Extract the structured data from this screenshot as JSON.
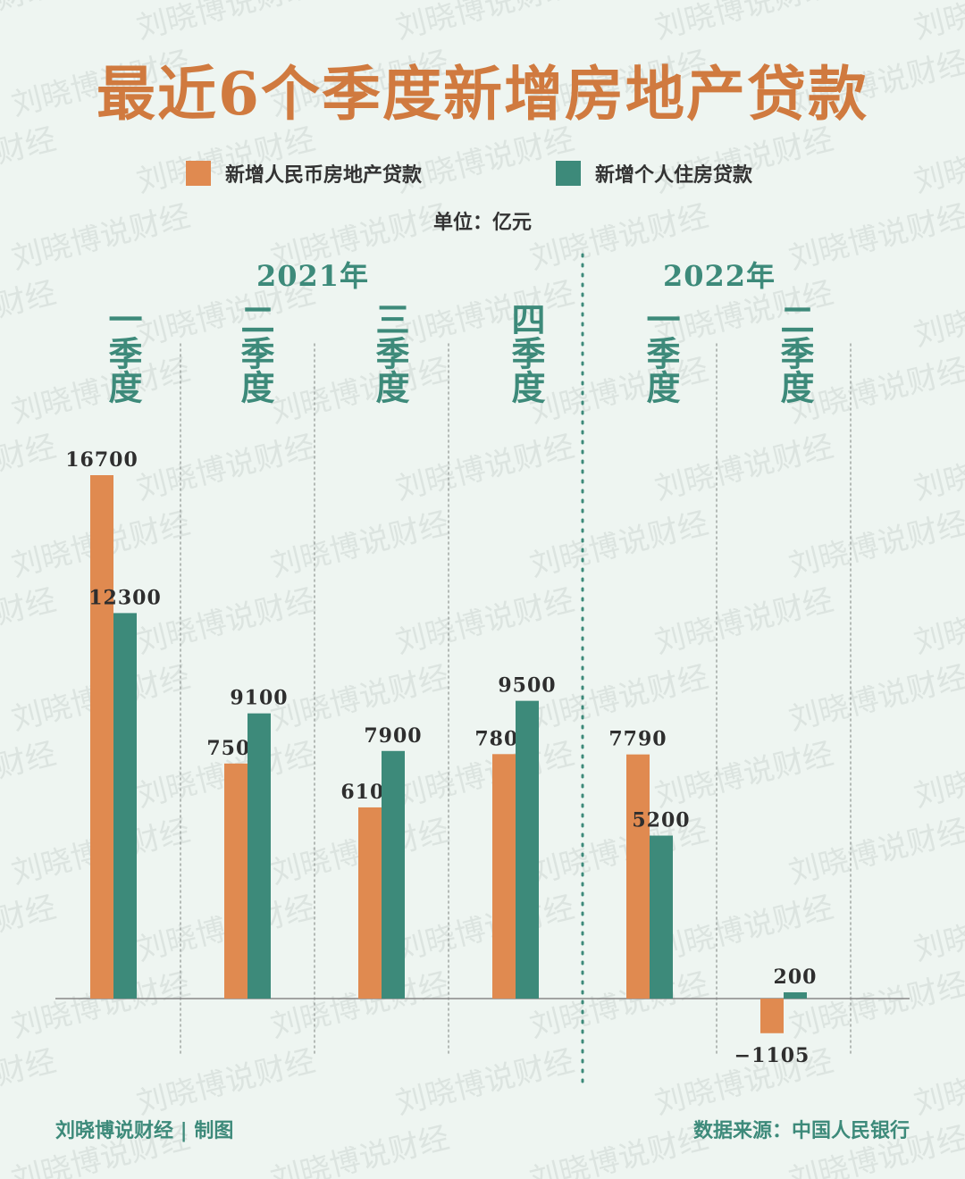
{
  "title": "最近6个季度新增房地产贷款",
  "legend": [
    {
      "label": "新增人民币房地产贷款",
      "color": "#e08a50"
    },
    {
      "label": "新增个人住房贷款",
      "color": "#3d8a7a"
    }
  ],
  "unit": "单位：亿元",
  "years": [
    "2021年",
    "2022年"
  ],
  "quarters": [
    "一季度",
    "二季度",
    "三季度",
    "四季度",
    "一季度",
    "二季度"
  ],
  "footer_left": "刘晓博说财经 | 制图",
  "footer_right": "数据来源：中国人民银行",
  "watermark_text": "刘晓博说财经",
  "colors": {
    "accent": "#d07a3f",
    "teal": "#3d8a7a",
    "background": "#eef5f1"
  },
  "chart_data": {
    "type": "bar",
    "categories": [
      "2021年一季度",
      "2021年二季度",
      "2021年三季度",
      "2021年四季度",
      "2022年一季度",
      "2022年二季度"
    ],
    "series": [
      {
        "name": "新增人民币房地产贷款",
        "values": [
          16700,
          7500,
          6100,
          7800,
          7790,
          -1105
        ]
      },
      {
        "name": "新增个人住房贷款",
        "values": [
          12300,
          9100,
          7900,
          9500,
          5200,
          200
        ]
      }
    ],
    "data_labels": [
      [
        "16700",
        "7500",
        "6100",
        "7800",
        "7790",
        "−1105"
      ],
      [
        "12300",
        "9100",
        "7900",
        "9500",
        "5200",
        "200"
      ]
    ],
    "ylim": [
      -1105,
      16700
    ],
    "grid": false,
    "legend_position": "top"
  }
}
